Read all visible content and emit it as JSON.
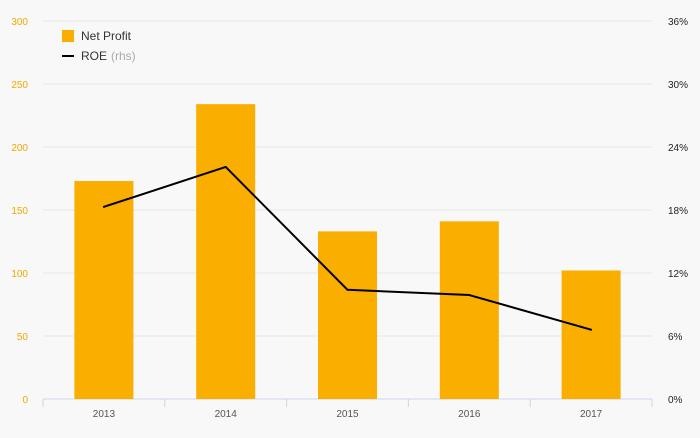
{
  "chart_data": {
    "type": "bar",
    "categories": [
      "2013",
      "2014",
      "2015",
      "2016",
      "2017"
    ],
    "series": [
      {
        "name": "Net Profit",
        "type": "bar",
        "axis": "left",
        "values": [
          173,
          234,
          133,
          141,
          102
        ]
      },
      {
        "name": "ROE",
        "type": "line",
        "axis": "right",
        "values": [
          18.3,
          22.1,
          10.4,
          9.9,
          6.6
        ]
      }
    ],
    "legend_note": "(rhs)",
    "left_axis": {
      "ylim": [
        0,
        300
      ],
      "ticks": [
        "0",
        "50",
        "100",
        "150",
        "200",
        "250",
        "300"
      ]
    },
    "right_axis": {
      "ylim": [
        0,
        36
      ],
      "ticks": [
        "0%",
        "6%",
        "12%",
        "18%",
        "24%",
        "30%",
        "36%"
      ]
    },
    "colors": {
      "bar": "#f9ae00",
      "line": "#000000",
      "left_ticks": "#f0a800",
      "grid": "#e6e6e6"
    },
    "grid": true,
    "legend_position": "top-left"
  }
}
